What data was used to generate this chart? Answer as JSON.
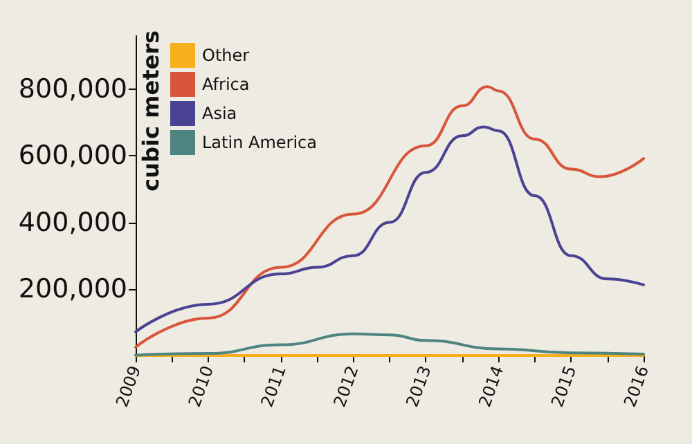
{
  "chart_data": {
    "type": "line",
    "ylabel": "cubic meters",
    "xlim": [
      2009,
      2016
    ],
    "xticks": [
      2009,
      {
        "value": 2009.5,
        "label": null
      },
      2010,
      {
        "value": 2010.5,
        "label": null
      },
      2011,
      {
        "value": 2011.5,
        "label": null
      },
      2012,
      {
        "value": 2012.5,
        "label": null
      },
      2013,
      {
        "value": 2013.5,
        "label": null
      },
      2014,
      {
        "value": 2014.5,
        "label": null
      },
      2015,
      {
        "value": 2015.5,
        "label": null
      },
      2016
    ],
    "ylim": [
      0,
      960000
    ],
    "yticks": [
      {
        "value": 200000,
        "label": "200,000"
      },
      {
        "value": 400000,
        "label": "400,000"
      },
      {
        "value": 600000,
        "label": "600,000"
      },
      {
        "value": 800000,
        "label": "800,000"
      }
    ],
    "grid": false,
    "legend": "top left",
    "marker": "none",
    "line_style": "solid",
    "series": [
      {
        "name": "Other",
        "color": "#f5b01c",
        "x": [
          2009,
          2010,
          2011,
          2012,
          2013,
          2014,
          2015,
          2016
        ],
        "values": [
          0,
          0,
          0,
          0,
          0,
          0,
          0,
          0
        ]
      },
      {
        "name": "Africa",
        "color": "#d9553a",
        "x": [
          2009,
          2010,
          2011,
          2012,
          2013,
          2013.5,
          2013.85,
          2014,
          2014.5,
          2015,
          2015.4,
          2016
        ],
        "values": [
          25000,
          112000,
          265000,
          425000,
          630000,
          750000,
          808000,
          795000,
          650000,
          560000,
          537000,
          592000
        ]
      },
      {
        "name": "Asia",
        "color": "#4a4393",
        "x": [
          2009,
          2010,
          2011,
          2011.5,
          2012,
          2012.5,
          2013,
          2013.5,
          2013.8,
          2014,
          2014.5,
          2015,
          2015.5,
          2016
        ],
        "values": [
          71000,
          154000,
          245000,
          265000,
          300000,
          400000,
          550000,
          660000,
          687000,
          675000,
          480000,
          300000,
          230000,
          212000
        ]
      },
      {
        "name": "Latin America",
        "color": "#4f8580",
        "x": [
          2009,
          2010,
          2011,
          2012,
          2012.5,
          2013,
          2014,
          2015,
          2016
        ],
        "values": [
          1000,
          6000,
          32000,
          65000,
          62000,
          45000,
          20000,
          8000,
          4000
        ]
      }
    ]
  }
}
